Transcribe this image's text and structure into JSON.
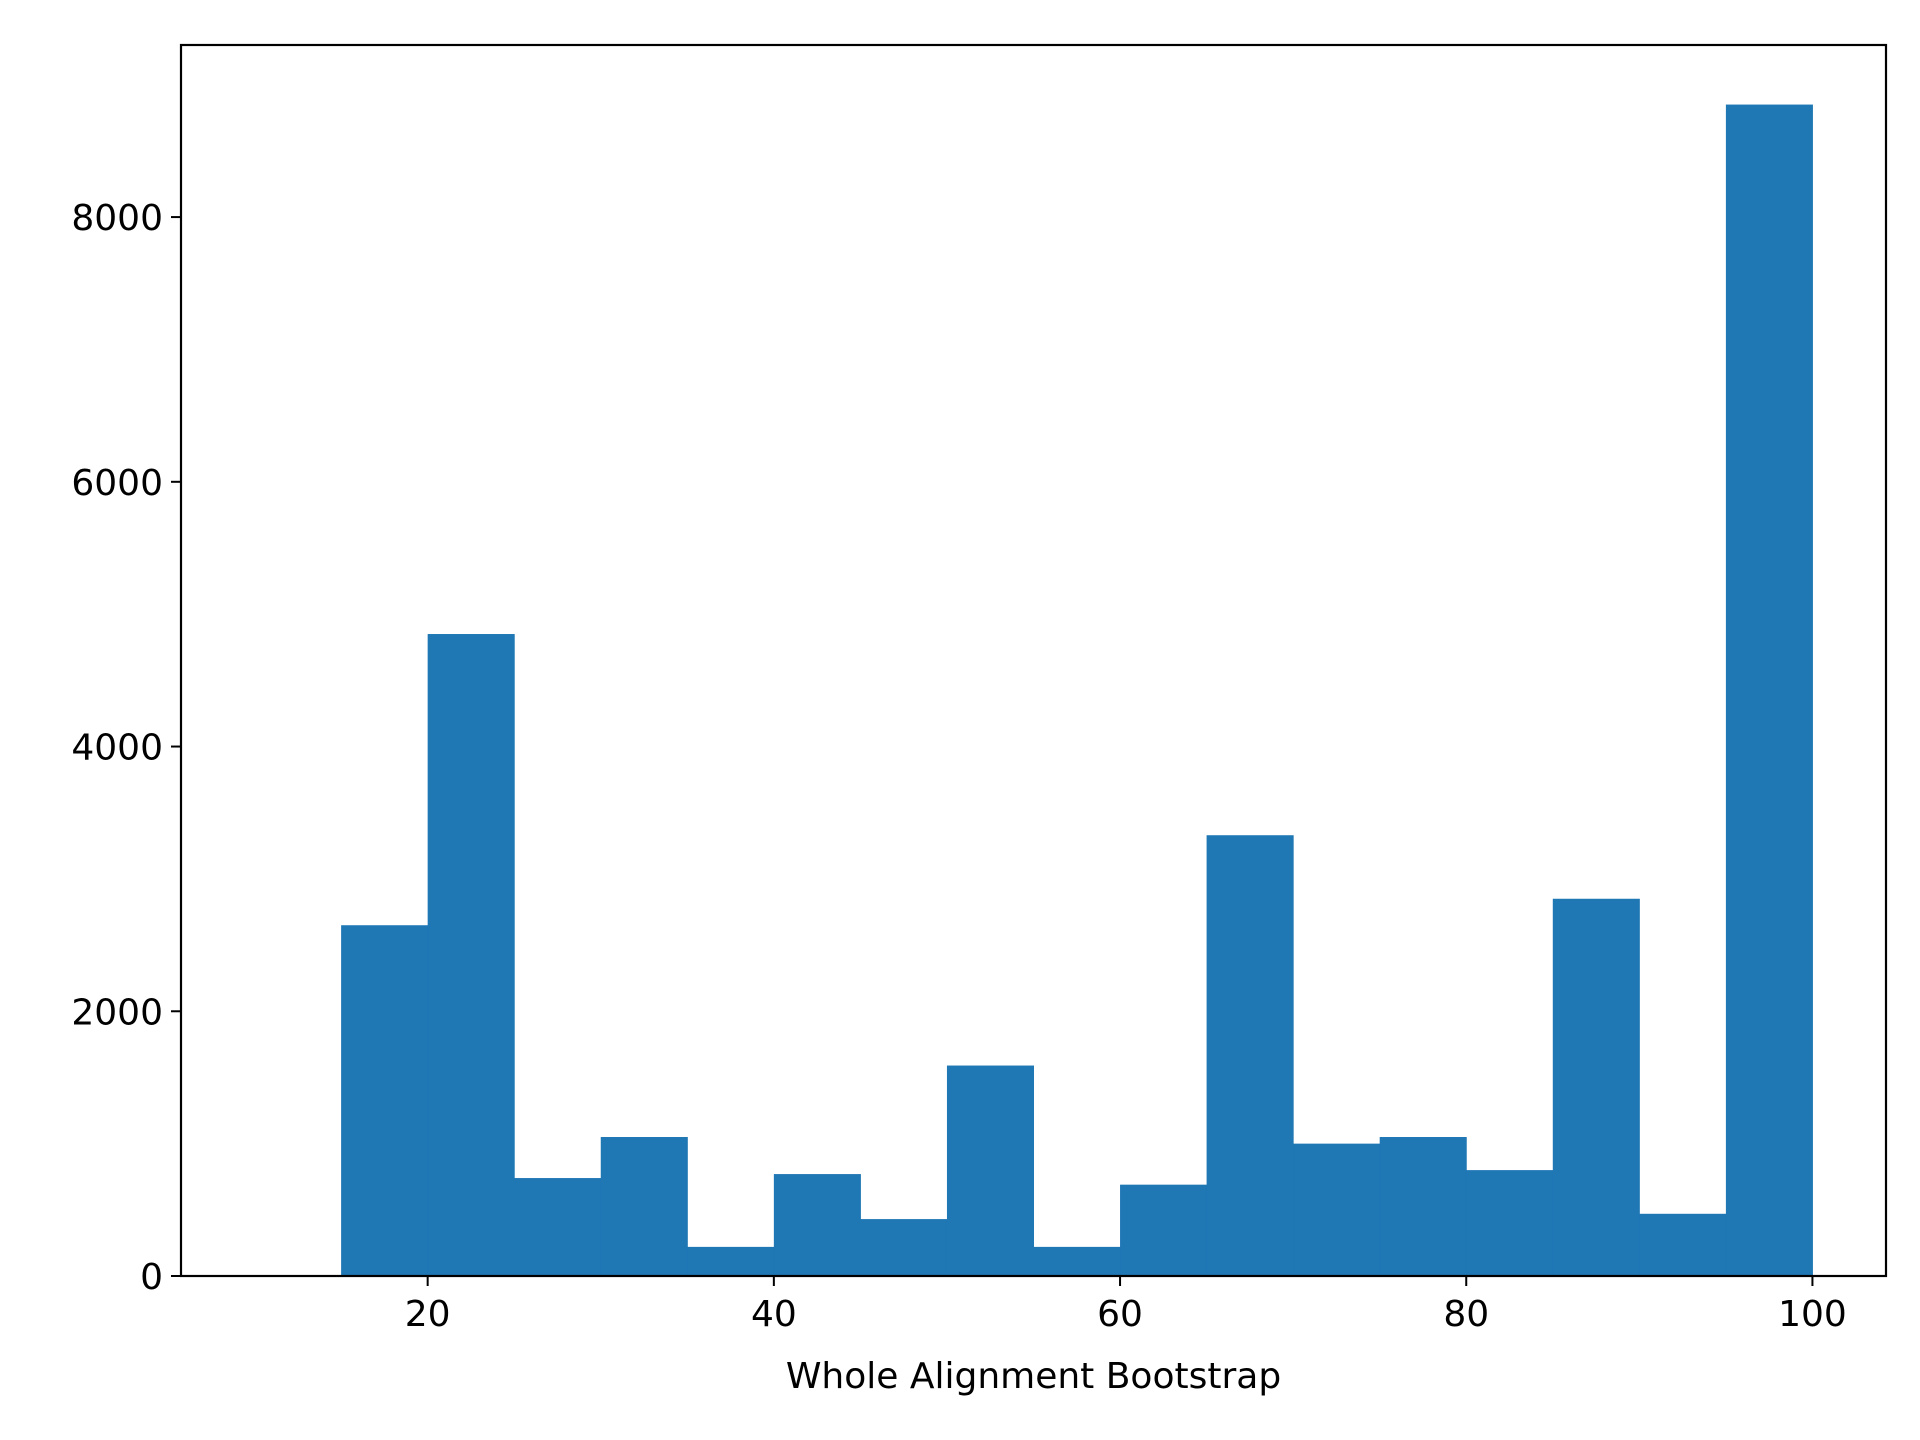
{
  "chart_data": {
    "type": "bar",
    "title": "",
    "xlabel": "Whole Alignment Bootstrap",
    "ylabel": "",
    "xlim": [
      5.75,
      104.25
    ],
    "ylim": [
      0,
      9300
    ],
    "grid": false,
    "legend": "none",
    "bar_color": "#1f77b4",
    "x_ticks": [
      20,
      40,
      60,
      80,
      100
    ],
    "y_ticks": [
      0,
      2000,
      4000,
      6000,
      8000
    ],
    "bins": [
      {
        "x0": 15,
        "x1": 20,
        "value": 2650
      },
      {
        "x0": 20,
        "x1": 25,
        "value": 4850
      },
      {
        "x0": 25,
        "x1": 30,
        "value": 740
      },
      {
        "x0": 30,
        "x1": 35,
        "value": 1050
      },
      {
        "x0": 35,
        "x1": 40,
        "value": 220
      },
      {
        "x0": 40,
        "x1": 45,
        "value": 770
      },
      {
        "x0": 45,
        "x1": 50,
        "value": 430
      },
      {
        "x0": 50,
        "x1": 55,
        "value": 1590
      },
      {
        "x0": 55,
        "x1": 60,
        "value": 220
      },
      {
        "x0": 60,
        "x1": 65,
        "value": 690
      },
      {
        "x0": 65,
        "x1": 70,
        "value": 3330
      },
      {
        "x0": 70,
        "x1": 75,
        "value": 1000
      },
      {
        "x0": 75,
        "x1": 80,
        "value": 1050
      },
      {
        "x0": 80,
        "x1": 85,
        "value": 800
      },
      {
        "x0": 85,
        "x1": 90,
        "value": 2850
      },
      {
        "x0": 90,
        "x1": 95,
        "value": 470
      },
      {
        "x0": 95,
        "x1": 100,
        "value": 8850
      }
    ]
  }
}
